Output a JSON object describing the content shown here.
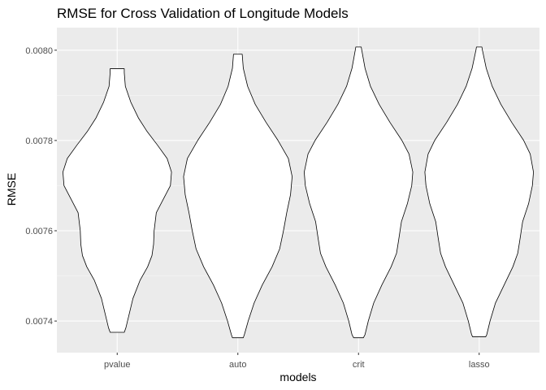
{
  "chart_data": {
    "type": "violin",
    "title": "RMSE for Cross Validation of Longitude Models",
    "xlabel": "models",
    "ylabel": "RMSE",
    "categories": [
      "pvalue",
      "auto",
      "crit",
      "lasso"
    ],
    "ylim": [
      0.00733,
      0.00805
    ],
    "yticks": [
      0.0074,
      0.0076,
      0.0078,
      0.008
    ],
    "ytick_labels": [
      "0.0074",
      "0.0076",
      "0.0078",
      "0.0080"
    ],
    "grid": true,
    "background": "#ebebeb",
    "violins": [
      {
        "name": "pvalue",
        "min": 0.007375,
        "max": 0.007959,
        "profile": [
          [
            0.007375,
            0.13
          ],
          [
            0.007385,
            0.16
          ],
          [
            0.00741,
            0.21
          ],
          [
            0.00745,
            0.29
          ],
          [
            0.00749,
            0.42
          ],
          [
            0.00752,
            0.56
          ],
          [
            0.007545,
            0.64
          ],
          [
            0.00757,
            0.67
          ],
          [
            0.0076,
            0.68
          ],
          [
            0.00764,
            0.72
          ],
          [
            0.00767,
            0.85
          ],
          [
            0.0077,
            0.98
          ],
          [
            0.00773,
            1.0
          ],
          [
            0.00776,
            0.92
          ],
          [
            0.00779,
            0.74
          ],
          [
            0.00782,
            0.55
          ],
          [
            0.00785,
            0.39
          ],
          [
            0.007885,
            0.25
          ],
          [
            0.00792,
            0.15
          ],
          [
            0.00795,
            0.13
          ],
          [
            0.007959,
            0.13
          ]
        ]
      },
      {
        "name": "auto",
        "min": 0.007363,
        "max": 0.007991,
        "profile": [
          [
            0.007363,
            0.1
          ],
          [
            0.00737,
            0.12
          ],
          [
            0.0074,
            0.19
          ],
          [
            0.00744,
            0.3
          ],
          [
            0.00748,
            0.45
          ],
          [
            0.00752,
            0.63
          ],
          [
            0.00756,
            0.77
          ],
          [
            0.0076,
            0.84
          ],
          [
            0.00764,
            0.9
          ],
          [
            0.00768,
            0.97
          ],
          [
            0.00772,
            1.0
          ],
          [
            0.00776,
            0.93
          ],
          [
            0.0078,
            0.74
          ],
          [
            0.00784,
            0.52
          ],
          [
            0.00788,
            0.32
          ],
          [
            0.00792,
            0.18
          ],
          [
            0.00796,
            0.1
          ],
          [
            0.007991,
            0.08
          ]
        ]
      },
      {
        "name": "crit",
        "min": 0.007363,
        "max": 0.008007,
        "profile": [
          [
            0.007363,
            0.09
          ],
          [
            0.00737,
            0.12
          ],
          [
            0.0074,
            0.18
          ],
          [
            0.00744,
            0.28
          ],
          [
            0.00748,
            0.43
          ],
          [
            0.00752,
            0.6
          ],
          [
            0.00755,
            0.7
          ],
          [
            0.00758,
            0.74
          ],
          [
            0.00762,
            0.79
          ],
          [
            0.00766,
            0.9
          ],
          [
            0.0077,
            0.98
          ],
          [
            0.00773,
            1.0
          ],
          [
            0.00777,
            0.93
          ],
          [
            0.0078,
            0.8
          ],
          [
            0.00784,
            0.58
          ],
          [
            0.00788,
            0.38
          ],
          [
            0.00792,
            0.22
          ],
          [
            0.00796,
            0.12
          ],
          [
            0.008,
            0.06
          ],
          [
            0.008007,
            0.05
          ]
        ]
      },
      {
        "name": "lasso",
        "min": 0.007365,
        "max": 0.008007,
        "profile": [
          [
            0.007365,
            0.12
          ],
          [
            0.00737,
            0.14
          ],
          [
            0.0074,
            0.2
          ],
          [
            0.00744,
            0.3
          ],
          [
            0.00748,
            0.46
          ],
          [
            0.00752,
            0.62
          ],
          [
            0.00755,
            0.71
          ],
          [
            0.00758,
            0.75
          ],
          [
            0.00762,
            0.8
          ],
          [
            0.00766,
            0.91
          ],
          [
            0.0077,
            0.98
          ],
          [
            0.00773,
            1.0
          ],
          [
            0.00777,
            0.94
          ],
          [
            0.0078,
            0.82
          ],
          [
            0.00784,
            0.6
          ],
          [
            0.00788,
            0.4
          ],
          [
            0.00792,
            0.24
          ],
          [
            0.00796,
            0.13
          ],
          [
            0.008,
            0.06
          ],
          [
            0.008007,
            0.05
          ]
        ]
      }
    ]
  }
}
